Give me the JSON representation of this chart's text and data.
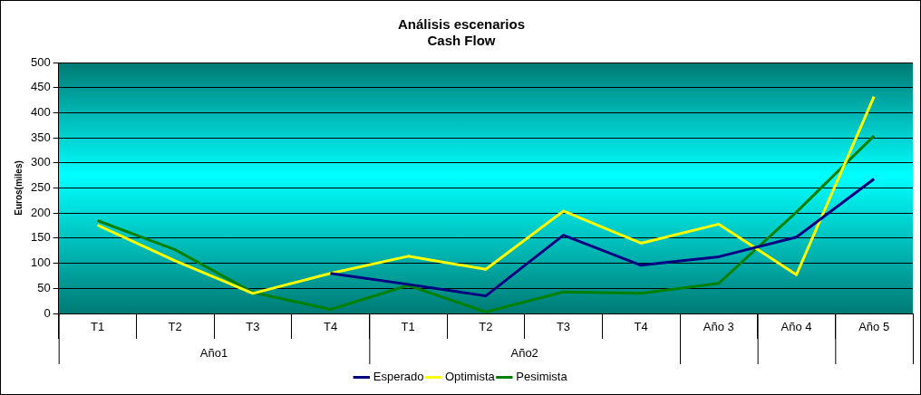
{
  "chart_data": {
    "type": "line",
    "title": "Análisis escenarios",
    "subtitle": "Cash Flow",
    "ylabel": "Euros(miles)",
    "categories": [
      "T1",
      "T2",
      "T3",
      "T4",
      "T1",
      "T2",
      "T3",
      "T4",
      "Año 3",
      "Año 4",
      "Año 5"
    ],
    "annotations": [
      "Año1",
      "Año2"
    ],
    "series": [
      {
        "name": "Esperado",
        "color": "#000080",
        "values": [
          null,
          null,
          null,
          80,
          58,
          35,
          156,
          96,
          113,
          152,
          268
        ]
      },
      {
        "name": "Optimista",
        "color": "#ffff00",
        "values": [
          176,
          105,
          40,
          80,
          114,
          88,
          204,
          140,
          178,
          77,
          432
        ]
      },
      {
        "name": "Pesimista",
        "color": "#008000",
        "values": [
          185,
          127,
          42,
          8,
          56,
          3,
          43,
          40,
          60,
          202,
          354
        ]
      }
    ],
    "ylim": [
      0,
      500
    ],
    "yticks": [
      0,
      50,
      100,
      150,
      200,
      250,
      300,
      350,
      400,
      450,
      500
    ],
    "grid": "y",
    "legend": "bottom",
    "marker": "none",
    "line_style": "solid"
  }
}
